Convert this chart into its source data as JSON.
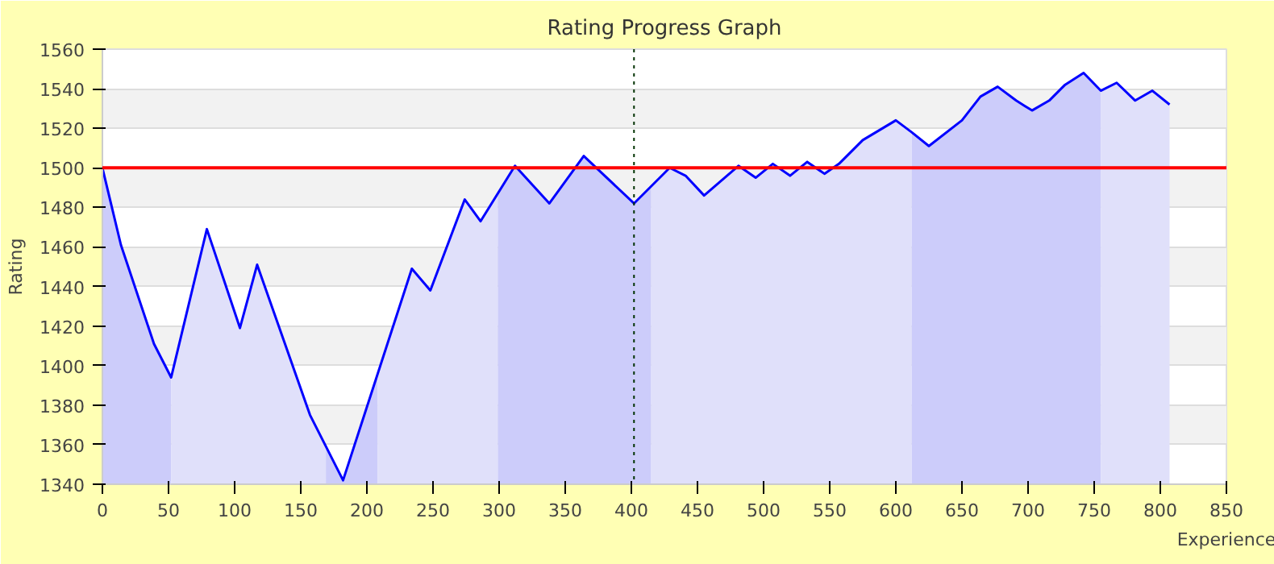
{
  "chart_data": {
    "type": "line",
    "title": "Rating Progress Graph",
    "xlabel": "Experience",
    "ylabel": "Rating",
    "xlim": [
      0,
      850
    ],
    "xticks": [
      0,
      50,
      100,
      150,
      200,
      250,
      300,
      350,
      400,
      450,
      500,
      550,
      600,
      650,
      700,
      750,
      800,
      850
    ],
    "ylim": [
      1340,
      1560
    ],
    "yticks": [
      1340,
      1360,
      1380,
      1400,
      1420,
      1440,
      1460,
      1480,
      1500,
      1520,
      1540,
      1560
    ],
    "grid": "y",
    "marker": "none",
    "line_style": "solid",
    "series": [
      {
        "type": "area",
        "color": "#ccccfa",
        "x": [
          0,
          14,
          39,
          52
        ],
        "values": [
          1500,
          1461,
          1411,
          1394
        ]
      },
      {
        "type": "area",
        "color": "#e0e0fa",
        "x": [
          52,
          79,
          104,
          117,
          157,
          169
        ],
        "values": [
          1394,
          1469,
          1419,
          1451,
          1375,
          1359
        ]
      },
      {
        "type": "area",
        "color": "#ccccfa",
        "x": [
          169,
          182,
          208
        ],
        "values": [
          1359,
          1342,
          1395
        ]
      },
      {
        "type": "area",
        "color": "#e0e0fa",
        "x": [
          208,
          234,
          248,
          274,
          286,
          299
        ],
        "values": [
          1395,
          1449,
          1438,
          1484,
          1473,
          1487
        ]
      },
      {
        "type": "area",
        "color": "#ccccfa",
        "x": [
          299,
          312,
          338,
          364,
          402,
          415
        ],
        "values": [
          1487,
          1501,
          1482,
          1506,
          1482,
          1491
        ]
      },
      {
        "type": "area",
        "color": "#e0e0fa",
        "x": [
          415,
          429,
          441,
          455,
          481,
          494,
          507,
          520,
          533,
          546,
          557,
          575,
          600,
          612
        ],
        "values": [
          1491,
          1500,
          1496,
          1486,
          1501,
          1495,
          1502,
          1496,
          1503,
          1497,
          1502,
          1514,
          1524,
          1518
        ]
      },
      {
        "type": "area",
        "color": "#ccccfa",
        "x": [
          612,
          625,
          650,
          664,
          677,
          691,
          703,
          716,
          728,
          742,
          755
        ],
        "values": [
          1518,
          1511,
          1524,
          1536,
          1541,
          1534,
          1529,
          1534,
          1542,
          1548,
          1539
        ]
      },
      {
        "type": "area",
        "color": "#e0e0fa",
        "x": [
          755,
          767,
          781,
          794,
          807
        ],
        "values": [
          1539,
          1543,
          1534,
          1539,
          1532
        ]
      },
      {
        "color": "#0000ff",
        "x": [
          0,
          14,
          39,
          52,
          79,
          104,
          117,
          157,
          182,
          234,
          248,
          274,
          286,
          312,
          338,
          364,
          402,
          429,
          441,
          455,
          481,
          494,
          507,
          520,
          533,
          546,
          557,
          575,
          600,
          612,
          625,
          650,
          664,
          677,
          691,
          703,
          716,
          728,
          742,
          755,
          767,
          781,
          794,
          807
        ],
        "values": [
          1500,
          1461,
          1411,
          1394,
          1469,
          1419,
          1451,
          1375,
          1342,
          1449,
          1438,
          1484,
          1473,
          1501,
          1482,
          1506,
          1482,
          1500,
          1496,
          1486,
          1501,
          1495,
          1502,
          1496,
          1503,
          1497,
          1502,
          1514,
          1524,
          1518,
          1511,
          1524,
          1536,
          1541,
          1534,
          1529,
          1534,
          1542,
          1548,
          1539,
          1543,
          1534,
          1539,
          1532
        ]
      }
    ],
    "ref_lines": [
      {
        "axis": "y",
        "value": 1500,
        "color": "#ff0000",
        "line_style": "solid"
      },
      {
        "axis": "x",
        "value": 402,
        "color": "#003300",
        "line_style": "dotted"
      }
    ]
  }
}
